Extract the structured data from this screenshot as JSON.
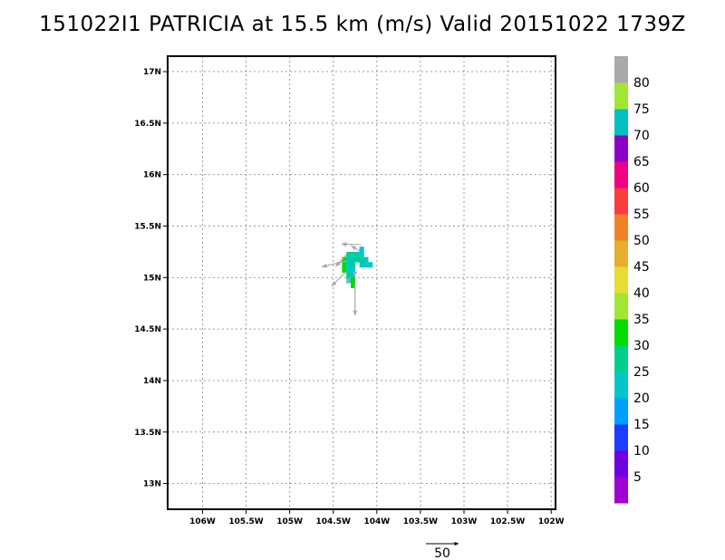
{
  "title": "151022I1 PATRICIA at 15.5 km (m/s) Valid 20151022 1739Z",
  "chart_data": {
    "type": "heatmap",
    "title": "151022I1 PATRICIA at 15.5 km (m/s) Valid 20151022 1739Z",
    "units": "m/s",
    "xlim": [
      -106.4,
      -101.95
    ],
    "ylim": [
      12.75,
      17.15
    ],
    "grid": true,
    "x_ticks": [
      {
        "value": -106.0,
        "label": "106W"
      },
      {
        "value": -105.5,
        "label": "105.5W"
      },
      {
        "value": -105.0,
        "label": "105W"
      },
      {
        "value": -104.5,
        "label": "104.5W"
      },
      {
        "value": -104.0,
        "label": "104W"
      },
      {
        "value": -103.5,
        "label": "103.5W"
      },
      {
        "value": -103.0,
        "label": "103W"
      },
      {
        "value": -102.5,
        "label": "102.5W"
      },
      {
        "value": -102.0,
        "label": "102W"
      }
    ],
    "y_ticks": [
      {
        "value": 13.0,
        "label": "13N"
      },
      {
        "value": 13.5,
        "label": "13.5N"
      },
      {
        "value": 14.0,
        "label": "14N"
      },
      {
        "value": 14.5,
        "label": "14.5N"
      },
      {
        "value": 15.0,
        "label": "15N"
      },
      {
        "value": 15.5,
        "label": "15.5N"
      },
      {
        "value": 16.0,
        "label": "16N"
      },
      {
        "value": 16.5,
        "label": "16.5N"
      },
      {
        "value": 17.0,
        "label": "17N"
      }
    ],
    "colorbar": {
      "labels": [
        "5",
        "10",
        "15",
        "20",
        "25",
        "30",
        "35",
        "40",
        "45",
        "50",
        "55",
        "60",
        "65",
        "70",
        "75",
        "80"
      ],
      "colors": [
        "#a000d0",
        "#7000e0",
        "#1e3cff",
        "#00a0ff",
        "#00c8c8",
        "#00d08c",
        "#00dc00",
        "#a0e632",
        "#e6dc32",
        "#e6af2d",
        "#f08228",
        "#fa3c3c",
        "#f00082",
        "#8c00c8",
        "#00c0c0",
        "#a0e632",
        "#aaaaaa"
      ]
    },
    "cell_size_deg": 0.05,
    "cells": [
      {
        "lon": -104.175,
        "lat": 15.275,
        "value": 22
      },
      {
        "lon": -104.225,
        "lat": 15.225,
        "value": 22
      },
      {
        "lon": -104.175,
        "lat": 15.225,
        "value": 22
      },
      {
        "lon": -104.325,
        "lat": 15.225,
        "value": 27
      },
      {
        "lon": -104.275,
        "lat": 15.225,
        "value": 27
      },
      {
        "lon": -104.375,
        "lat": 15.175,
        "value": 32
      },
      {
        "lon": -104.325,
        "lat": 15.175,
        "value": 22
      },
      {
        "lon": -104.275,
        "lat": 15.175,
        "value": 22
      },
      {
        "lon": -104.225,
        "lat": 15.175,
        "value": 27
      },
      {
        "lon": -104.175,
        "lat": 15.175,
        "value": 27
      },
      {
        "lon": -104.125,
        "lat": 15.175,
        "value": 22
      },
      {
        "lon": -104.375,
        "lat": 15.125,
        "value": 33
      },
      {
        "lon": -104.325,
        "lat": 15.125,
        "value": 22
      },
      {
        "lon": -104.275,
        "lat": 15.125,
        "value": 27
      },
      {
        "lon": -104.175,
        "lat": 15.125,
        "value": 22
      },
      {
        "lon": -104.125,
        "lat": 15.125,
        "value": 22
      },
      {
        "lon": -104.075,
        "lat": 15.125,
        "value": 22
      },
      {
        "lon": -104.375,
        "lat": 15.075,
        "value": 32
      },
      {
        "lon": -104.325,
        "lat": 15.075,
        "value": 22
      },
      {
        "lon": -104.275,
        "lat": 15.075,
        "value": 22
      },
      {
        "lon": -104.325,
        "lat": 15.025,
        "value": 27
      },
      {
        "lon": -104.275,
        "lat": 15.025,
        "value": 22
      },
      {
        "lon": -104.325,
        "lat": 14.975,
        "value": 22
      },
      {
        "lon": -104.275,
        "lat": 14.975,
        "value": 32
      },
      {
        "lon": -104.275,
        "lat": 14.925,
        "value": 32
      }
    ],
    "vectors": [
      {
        "lon": -104.18,
        "lat": 15.32,
        "u": -12,
        "v": 0.3
      },
      {
        "lon": -104.2,
        "lat": 15.26,
        "u": -5,
        "v": 3
      },
      {
        "lon": -104.35,
        "lat": 15.22,
        "u": -6.5,
        "v": -7
      },
      {
        "lon": -104.35,
        "lat": 15.16,
        "u": -15,
        "v": -3.5
      },
      {
        "lon": -104.35,
        "lat": 15.06,
        "u": -9,
        "v": -9
      },
      {
        "lon": -104.25,
        "lat": 15.05,
        "u": -0.5,
        "v": -2.5
      },
      {
        "lon": -104.3,
        "lat": 15.0,
        "u": -3,
        "v": -3.5
      },
      {
        "lon": -104.25,
        "lat": 14.95,
        "u": 0,
        "v": -20
      }
    ],
    "reference_vector": {
      "label": "50",
      "magnitude": 50
    }
  }
}
